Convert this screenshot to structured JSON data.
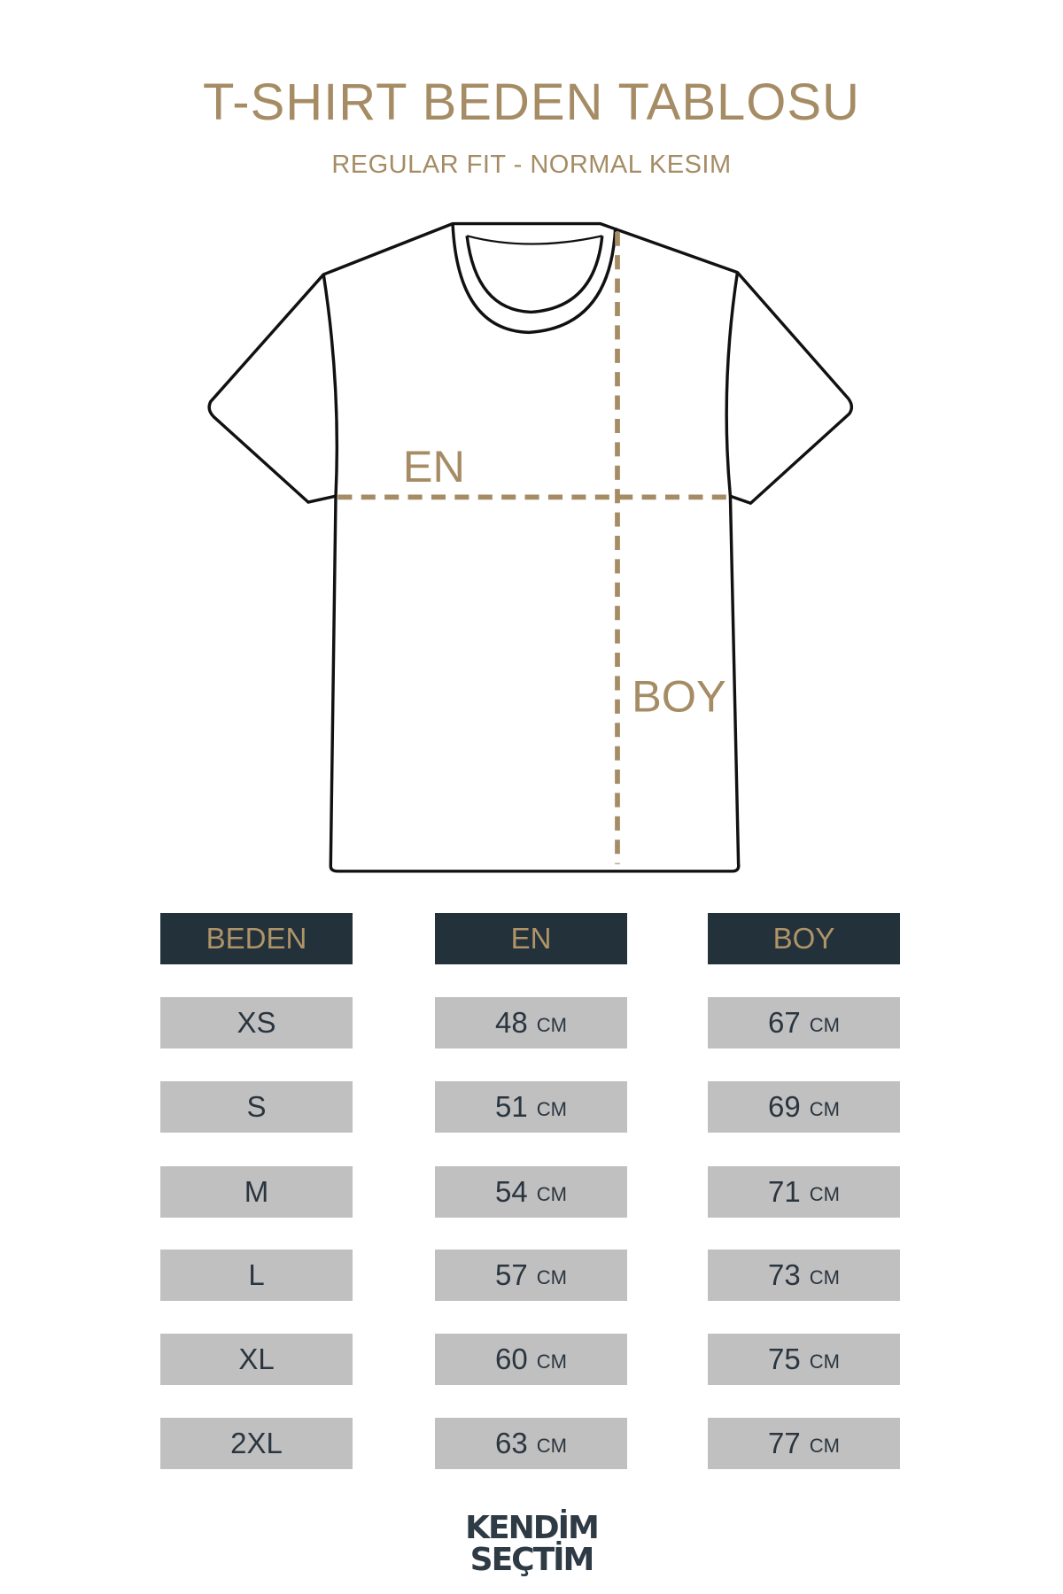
{
  "header": {
    "title": "T-SHIRT BEDEN TABLOSU",
    "subtitle": "REGULAR FIT - NORMAL KESIM"
  },
  "diagram": {
    "width_label": "EN",
    "length_label": "BOY",
    "accent_color": "#a58c64",
    "outline_color": "#111111"
  },
  "table": {
    "columns": [
      "BEDEN",
      "EN",
      "BOY"
    ],
    "unit": "CM",
    "rows": [
      {
        "size": "XS",
        "en": "48",
        "boy": "67"
      },
      {
        "size": "S",
        "en": "51",
        "boy": "69"
      },
      {
        "size": "M",
        "en": "54",
        "boy": "71"
      },
      {
        "size": "L",
        "en": "57",
        "boy": "73"
      },
      {
        "size": "XL",
        "en": "60",
        "boy": "75"
      },
      {
        "size": "2XL",
        "en": "63",
        "boy": "77"
      }
    ],
    "header_bg": "#23313b",
    "row_bg": "#c0c0c0"
  },
  "logo": {
    "line1": "KENDİM",
    "line2": "SEÇTİM"
  }
}
